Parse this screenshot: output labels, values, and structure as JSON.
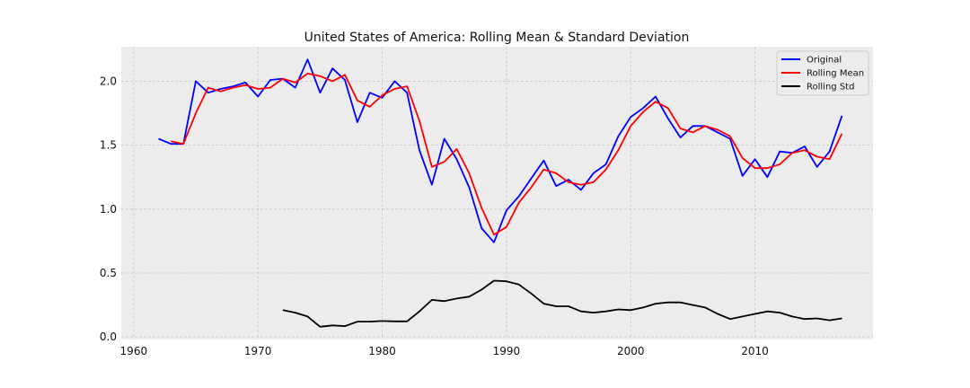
{
  "chart_data": {
    "type": "line",
    "title": "United States of America: Rolling Mean & Standard Deviation",
    "xlabel": "",
    "ylabel": "",
    "xlim": [
      1959,
      2019.5
    ],
    "ylim": [
      -0.02,
      2.27
    ],
    "xticks": [
      1960,
      1970,
      1980,
      1990,
      2000,
      2010
    ],
    "yticks": [
      0.0,
      0.5,
      1.0,
      1.5,
      2.0
    ],
    "xtick_labels": [
      "1960",
      "1970",
      "1980",
      "1990",
      "2000",
      "2010"
    ],
    "ytick_labels": [
      "0.0",
      "0.5",
      "1.0",
      "1.5",
      "2.0"
    ],
    "grid": true,
    "legend": "top-right",
    "series": [
      {
        "name": "Original",
        "color": "#0000ff",
        "points": [
          [
            1962,
            1.55
          ],
          [
            1963,
            1.51
          ],
          [
            1964,
            1.51
          ],
          [
            1965,
            2.0
          ],
          [
            1966,
            1.91
          ],
          [
            1967,
            1.94
          ],
          [
            1968,
            1.96
          ],
          [
            1969,
            1.99
          ],
          [
            1970,
            1.88
          ],
          [
            1971,
            2.01
          ],
          [
            1972,
            2.02
          ],
          [
            1973,
            1.95
          ],
          [
            1974,
            2.17
          ],
          [
            1975,
            1.91
          ],
          [
            1976,
            2.1
          ],
          [
            1977,
            2.01
          ],
          [
            1978,
            1.68
          ],
          [
            1979,
            1.91
          ],
          [
            1980,
            1.87
          ],
          [
            1981,
            2.0
          ],
          [
            1982,
            1.91
          ],
          [
            1983,
            1.46
          ],
          [
            1984,
            1.19
          ],
          [
            1985,
            1.55
          ],
          [
            1986,
            1.39
          ],
          [
            1987,
            1.17
          ],
          [
            1988,
            0.85
          ],
          [
            1989,
            0.74
          ],
          [
            1990,
            0.99
          ],
          [
            1991,
            1.1
          ],
          [
            1992,
            1.24
          ],
          [
            1993,
            1.38
          ],
          [
            1994,
            1.18
          ],
          [
            1995,
            1.23
          ],
          [
            1996,
            1.15
          ],
          [
            1997,
            1.28
          ],
          [
            1998,
            1.35
          ],
          [
            1999,
            1.57
          ],
          [
            2000,
            1.72
          ],
          [
            2001,
            1.79
          ],
          [
            2002,
            1.88
          ],
          [
            2003,
            1.71
          ],
          [
            2004,
            1.56
          ],
          [
            2005,
            1.65
          ],
          [
            2006,
            1.65
          ],
          [
            2007,
            1.6
          ],
          [
            2008,
            1.55
          ],
          [
            2009,
            1.26
          ],
          [
            2010,
            1.39
          ],
          [
            2011,
            1.25
          ],
          [
            2012,
            1.45
          ],
          [
            2013,
            1.44
          ],
          [
            2014,
            1.49
          ],
          [
            2015,
            1.33
          ],
          [
            2016,
            1.45
          ],
          [
            2017,
            1.73
          ]
        ]
      },
      {
        "name": "Rolling Mean",
        "color": "#ff0000",
        "points": [
          [
            1963,
            1.53
          ],
          [
            1964,
            1.51
          ],
          [
            1965,
            1.75
          ],
          [
            1966,
            1.95
          ],
          [
            1967,
            1.92
          ],
          [
            1968,
            1.95
          ],
          [
            1969,
            1.97
          ],
          [
            1970,
            1.94
          ],
          [
            1971,
            1.95
          ],
          [
            1972,
            2.02
          ],
          [
            1973,
            1.99
          ],
          [
            1974,
            2.06
          ],
          [
            1975,
            2.04
          ],
          [
            1976,
            2.0
          ],
          [
            1977,
            2.05
          ],
          [
            1978,
            1.85
          ],
          [
            1979,
            1.8
          ],
          [
            1980,
            1.89
          ],
          [
            1981,
            1.94
          ],
          [
            1982,
            1.96
          ],
          [
            1983,
            1.69
          ],
          [
            1984,
            1.33
          ],
          [
            1985,
            1.37
          ],
          [
            1986,
            1.47
          ],
          [
            1987,
            1.28
          ],
          [
            1988,
            1.01
          ],
          [
            1989,
            0.8
          ],
          [
            1990,
            0.86
          ],
          [
            1991,
            1.05
          ],
          [
            1992,
            1.17
          ],
          [
            1993,
            1.31
          ],
          [
            1994,
            1.28
          ],
          [
            1995,
            1.21
          ],
          [
            1996,
            1.19
          ],
          [
            1997,
            1.21
          ],
          [
            1998,
            1.31
          ],
          [
            1999,
            1.46
          ],
          [
            2000,
            1.65
          ],
          [
            2001,
            1.76
          ],
          [
            2002,
            1.84
          ],
          [
            2003,
            1.79
          ],
          [
            2004,
            1.63
          ],
          [
            2005,
            1.6
          ],
          [
            2006,
            1.65
          ],
          [
            2007,
            1.62
          ],
          [
            2008,
            1.57
          ],
          [
            2009,
            1.4
          ],
          [
            2010,
            1.32
          ],
          [
            2011,
            1.32
          ],
          [
            2012,
            1.35
          ],
          [
            2013,
            1.44
          ],
          [
            2014,
            1.46
          ],
          [
            2015,
            1.41
          ],
          [
            2016,
            1.39
          ],
          [
            2017,
            1.59
          ]
        ]
      },
      {
        "name": "Rolling Std",
        "color": "#000000",
        "points": [
          [
            1972,
            0.21
          ],
          [
            1973,
            0.19
          ],
          [
            1974,
            0.16
          ],
          [
            1975,
            0.08
          ],
          [
            1976,
            0.09
          ],
          [
            1977,
            0.085
          ],
          [
            1978,
            0.12
          ],
          [
            1979,
            0.12
          ],
          [
            1980,
            0.125
          ],
          [
            1981,
            0.122
          ],
          [
            1982,
            0.122
          ],
          [
            1983,
            0.2
          ],
          [
            1984,
            0.29
          ],
          [
            1985,
            0.28
          ],
          [
            1986,
            0.3
          ],
          [
            1987,
            0.315
          ],
          [
            1988,
            0.37
          ],
          [
            1989,
            0.44
          ],
          [
            1990,
            0.435
          ],
          [
            1991,
            0.41
          ],
          [
            1992,
            0.34
          ],
          [
            1993,
            0.26
          ],
          [
            1994,
            0.24
          ],
          [
            1995,
            0.24
          ],
          [
            1996,
            0.2
          ],
          [
            1997,
            0.19
          ],
          [
            1998,
            0.2
          ],
          [
            1999,
            0.215
          ],
          [
            2000,
            0.21
          ],
          [
            2001,
            0.23
          ],
          [
            2002,
            0.26
          ],
          [
            2003,
            0.27
          ],
          [
            2004,
            0.27
          ],
          [
            2005,
            0.25
          ],
          [
            2006,
            0.23
          ],
          [
            2007,
            0.18
          ],
          [
            2008,
            0.14
          ],
          [
            2009,
            0.16
          ],
          [
            2010,
            0.18
          ],
          [
            2011,
            0.2
          ],
          [
            2012,
            0.19
          ],
          [
            2013,
            0.16
          ],
          [
            2014,
            0.14
          ],
          [
            2015,
            0.145
          ],
          [
            2016,
            0.13
          ],
          [
            2017,
            0.145
          ]
        ]
      }
    ]
  }
}
